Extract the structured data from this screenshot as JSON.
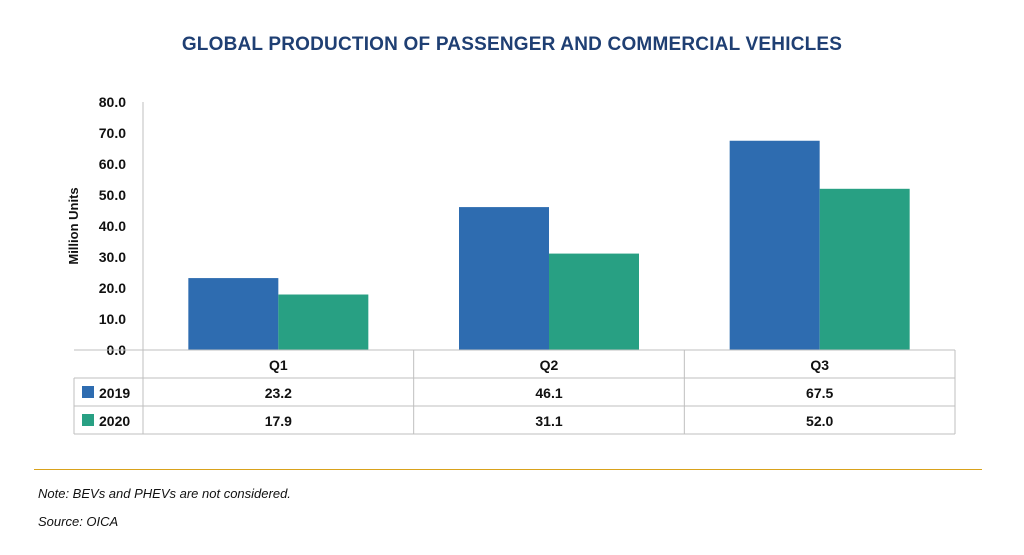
{
  "chart_data": {
    "type": "bar",
    "title": "GLOBAL PRODUCTION OF PASSENGER AND COMMERCIAL VEHICLES",
    "ylabel": "Million Units",
    "xlabel": "",
    "categories": [
      "Q1",
      "Q2",
      "Q3"
    ],
    "ylim": [
      0,
      80
    ],
    "yticks": [
      "0.0",
      "10.0",
      "20.0",
      "30.0",
      "40.0",
      "50.0",
      "60.0",
      "70.0",
      "80.0"
    ],
    "series": [
      {
        "name": "2019",
        "color": "#2e6cb0",
        "values": [
          23.2,
          46.1,
          67.5
        ],
        "labels": [
          "23.2",
          "46.1",
          "67.5"
        ]
      },
      {
        "name": "2020",
        "color": "#28a083",
        "values": [
          17.9,
          31.1,
          52.0
        ],
        "labels": [
          "17.9",
          "31.1",
          "52.0"
        ]
      }
    ],
    "data_table": true,
    "grid": false
  },
  "footer": {
    "note": "Note: BEVs and PHEVs are not considered.",
    "source": "Source: OICA"
  },
  "colors": {
    "title": "#1f3f73",
    "rule": "#d9a21b"
  }
}
